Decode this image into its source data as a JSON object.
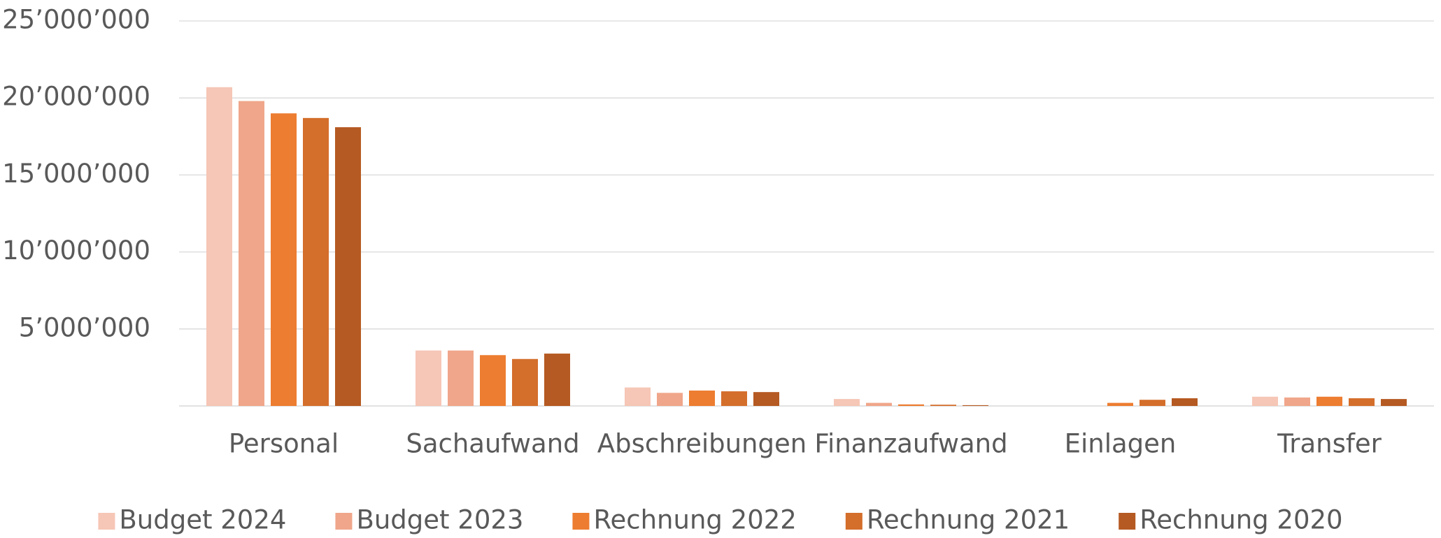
{
  "chart_data": {
    "type": "bar",
    "categories": [
      "Personal",
      "Sachaufwand",
      "Abschreibungen",
      "Finanzaufwand",
      "Einlagen",
      "Transfer"
    ],
    "series": [
      {
        "name": "Budget 2024",
        "color": "#f6c6b6",
        "values": [
          20700000,
          3600000,
          1200000,
          450000,
          0,
          600000
        ]
      },
      {
        "name": "Budget 2023",
        "color": "#f0a68a",
        "values": [
          19800000,
          3600000,
          850000,
          200000,
          0,
          550000
        ]
      },
      {
        "name": "Rechnung 2022",
        "color": "#ed7d31",
        "values": [
          19000000,
          3300000,
          1000000,
          100000,
          200000,
          600000
        ]
      },
      {
        "name": "Rechnung 2021",
        "color": "#d46e2b",
        "values": [
          18700000,
          3050000,
          950000,
          80000,
          400000,
          500000
        ]
      },
      {
        "name": "Rechnung 2020",
        "color": "#b55a22",
        "values": [
          18100000,
          3400000,
          900000,
          50000,
          500000,
          450000
        ]
      }
    ],
    "ylim": [
      0,
      25000000
    ],
    "yticks": [
      {
        "value": 5000000,
        "label": "5’000’000"
      },
      {
        "value": 10000000,
        "label": "10’000’000"
      },
      {
        "value": 15000000,
        "label": "15’000’000"
      },
      {
        "value": 20000000,
        "label": "20’000’000"
      },
      {
        "value": 25000000,
        "label": "25’000’000"
      }
    ],
    "grid": true,
    "legend": "bottom"
  }
}
